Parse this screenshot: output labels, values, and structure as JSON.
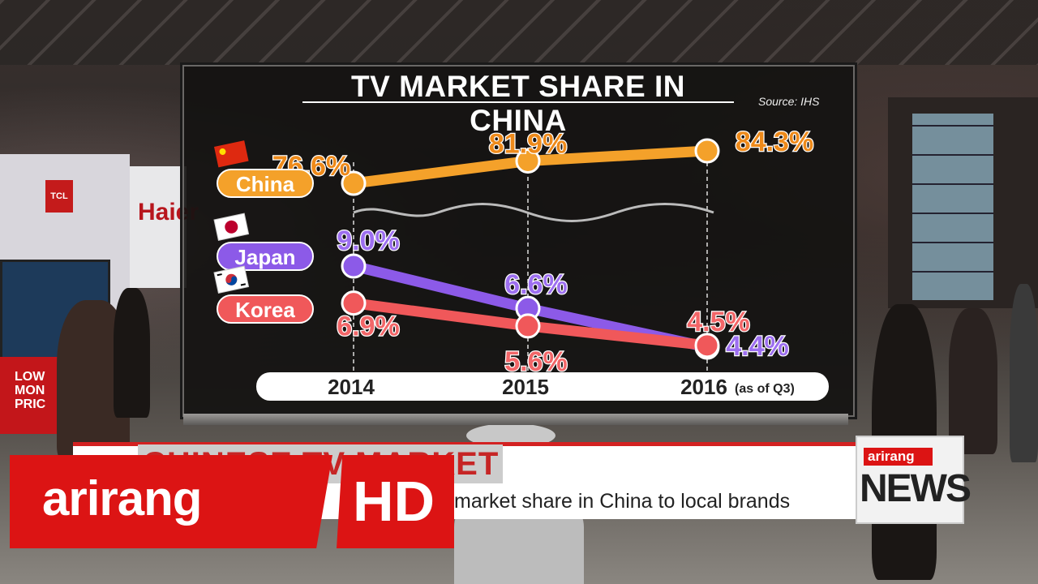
{
  "scene": {
    "booth_text_haier": "Haier",
    "booth_text_tcl": "TCL",
    "booth_text_low_price": "LOW MON PRIC"
  },
  "chart_data": {
    "type": "line",
    "title": "TV MARKET SHARE IN CHINA",
    "source": "Source: IHS",
    "categories": [
      "2014",
      "2015",
      "2016"
    ],
    "category_note": "(as of Q3)",
    "broken_axis": true,
    "series": [
      {
        "name": "China",
        "values": [
          76.6,
          81.9,
          84.3
        ],
        "labels": [
          "76.6%",
          "81.9%",
          "84.3%"
        ],
        "color": "#f4a12a",
        "label_color": "#ee8a1a",
        "flag": "china-flag-icon"
      },
      {
        "name": "Japan",
        "values": [
          9.0,
          6.6,
          4.4
        ],
        "labels": [
          "9.0%",
          "6.6%",
          "4.4%"
        ],
        "color": "#8c5ae8",
        "label_color": "#9d6ff0",
        "flag": "japan-flag-icon"
      },
      {
        "name": "Korea",
        "values": [
          6.9,
          5.6,
          4.5
        ],
        "labels": [
          "6.9%",
          "5.6%",
          "4.5%"
        ],
        "color": "#f0585a",
        "label_color": "#f26668",
        "flag": "korea-flag-icon"
      }
    ]
  },
  "broadcast": {
    "ticker": "CHINESE TV MARKET",
    "headline": "Korean TV manufacturers losing market share in China to local brands",
    "headline_visible": "market share in China to local brands",
    "channel_logo": "arirang",
    "hd_label": "HD",
    "news_logo": "arirang",
    "news_label": "NEWS"
  }
}
